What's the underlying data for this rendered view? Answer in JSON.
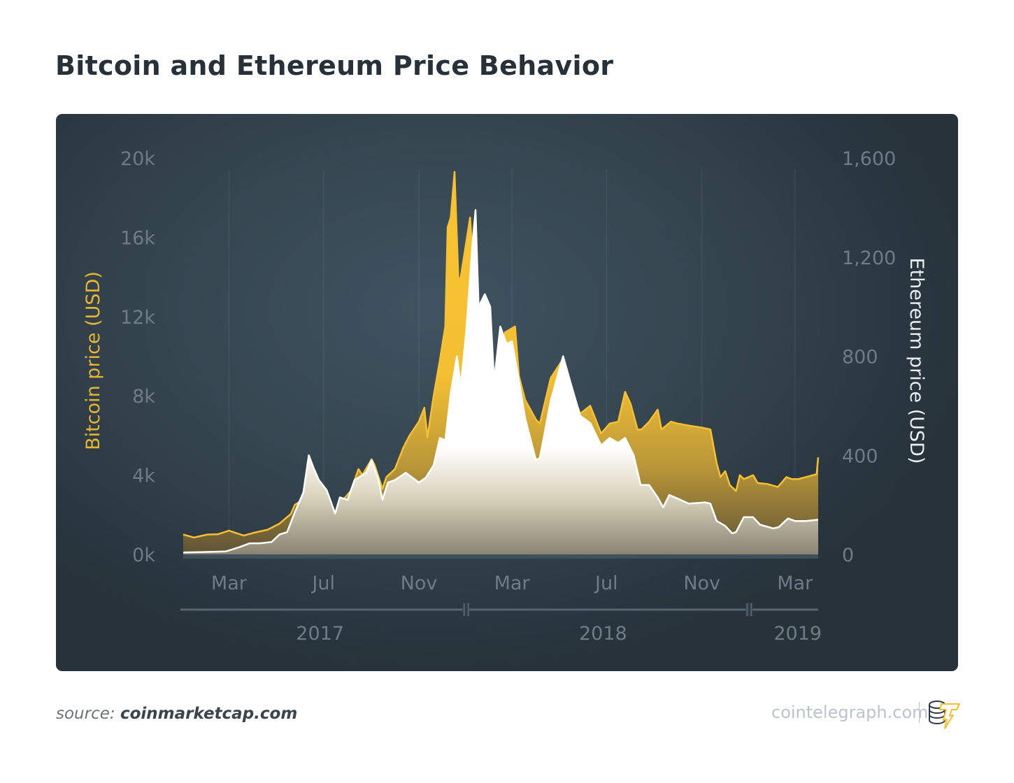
{
  "title": "Bitcoin and Ethereum Price Behavior",
  "footer": {
    "source_prefix": "source:",
    "source_name": "coinmarketcap.com",
    "brand": "cointelegraph.com"
  },
  "colors": {
    "bitcoin": "#f7c030",
    "ethereum": "#ffffff",
    "background": "#34444f",
    "tick": "#6e7c86"
  },
  "chart_data": {
    "type": "area",
    "title": "Bitcoin and Ethereum Price Behavior",
    "xlim": [
      "2017-01-01",
      "2019-03-31"
    ],
    "x_ticks": [
      {
        "date": "2017-03-01",
        "label": "Mar"
      },
      {
        "date": "2017-07-01",
        "label": "Jul"
      },
      {
        "date": "2017-11-01",
        "label": "Nov"
      },
      {
        "date": "2018-03-01",
        "label": "Mar"
      },
      {
        "date": "2018-07-01",
        "label": "Jul"
      },
      {
        "date": "2018-11-01",
        "label": "Nov"
      },
      {
        "date": "2019-03-01",
        "label": "Mar"
      }
    ],
    "year_labels": [
      {
        "date": "2017-07-01",
        "label": "2017"
      },
      {
        "date": "2018-07-01",
        "label": "2018"
      },
      {
        "date": "2019-03-01",
        "label": "2019"
      }
    ],
    "year_breaks": [
      "2018-01-01",
      "2019-01-01"
    ],
    "y_left": {
      "label": "Bitcoin price (USD)",
      "range": [
        0,
        20000
      ],
      "ticks": [
        {
          "v": 0,
          "label": "0k"
        },
        {
          "v": 4000,
          "label": "4k"
        },
        {
          "v": 8000,
          "label": "8k"
        },
        {
          "v": 12000,
          "label": "12k"
        },
        {
          "v": 16000,
          "label": "16k"
        },
        {
          "v": 20000,
          "label": "20k"
        }
      ]
    },
    "y_right": {
      "label": "Ethereum price (USD)",
      "range": [
        0,
        1600
      ],
      "ticks": [
        {
          "v": 0,
          "label": "0"
        },
        {
          "v": 400,
          "label": "400"
        },
        {
          "v": 800,
          "label": "800"
        },
        {
          "v": 1200,
          "label": "1,200"
        },
        {
          "v": 1600,
          "label": "1,600"
        }
      ]
    },
    "grid": "vertical-only",
    "legend": "none (axis titles colored by series)",
    "series": [
      {
        "name": "Bitcoin price (USD)",
        "axis": "left",
        "color": "#f7c030",
        "points": [
          [
            "2017-01-01",
            1000
          ],
          [
            "2017-01-15",
            850
          ],
          [
            "2017-02-01",
            1000
          ],
          [
            "2017-02-15",
            1020
          ],
          [
            "2017-03-01",
            1200
          ],
          [
            "2017-03-20",
            950
          ],
          [
            "2017-04-01",
            1080
          ],
          [
            "2017-04-20",
            1250
          ],
          [
            "2017-05-05",
            1550
          ],
          [
            "2017-05-20",
            2050
          ],
          [
            "2017-05-25",
            2500
          ],
          [
            "2017-06-10",
            2900
          ],
          [
            "2017-06-25",
            2500
          ],
          [
            "2017-07-10",
            2450
          ],
          [
            "2017-07-16",
            1950
          ],
          [
            "2017-07-25",
            2700
          ],
          [
            "2017-08-05",
            3200
          ],
          [
            "2017-08-15",
            4300
          ],
          [
            "2017-08-20",
            4000
          ],
          [
            "2017-09-01",
            4800
          ],
          [
            "2017-09-05",
            4500
          ],
          [
            "2017-09-15",
            3300
          ],
          [
            "2017-09-20",
            3900
          ],
          [
            "2017-10-01",
            4300
          ],
          [
            "2017-10-12",
            5400
          ],
          [
            "2017-10-20",
            6000
          ],
          [
            "2017-11-01",
            6700
          ],
          [
            "2017-11-08",
            7400
          ],
          [
            "2017-11-12",
            5900
          ],
          [
            "2017-11-20",
            8000
          ],
          [
            "2017-11-28",
            9800
          ],
          [
            "2017-12-05",
            11500
          ],
          [
            "2017-12-08",
            16500
          ],
          [
            "2017-12-12",
            17000
          ],
          [
            "2017-12-17",
            19300
          ],
          [
            "2017-12-22",
            13800
          ],
          [
            "2017-12-25",
            14000
          ],
          [
            "2018-01-06",
            17000
          ],
          [
            "2018-01-12",
            13500
          ],
          [
            "2018-01-17",
            11000
          ],
          [
            "2018-01-28",
            11500
          ],
          [
            "2018-02-01",
            9200
          ],
          [
            "2018-02-06",
            6900
          ],
          [
            "2018-02-14",
            9500
          ],
          [
            "2018-02-20",
            11200
          ],
          [
            "2018-03-05",
            11500
          ],
          [
            "2018-03-10",
            9000
          ],
          [
            "2018-03-18",
            7800
          ],
          [
            "2018-04-01",
            6800
          ],
          [
            "2018-04-06",
            6600
          ],
          [
            "2018-04-20",
            8900
          ],
          [
            "2018-05-05",
            9800
          ],
          [
            "2018-05-15",
            8500
          ],
          [
            "2018-05-28",
            7100
          ],
          [
            "2018-06-10",
            7500
          ],
          [
            "2018-06-24",
            6100
          ],
          [
            "2018-07-05",
            6600
          ],
          [
            "2018-07-16",
            6700
          ],
          [
            "2018-07-25",
            8200
          ],
          [
            "2018-08-01",
            7600
          ],
          [
            "2018-08-10",
            6300
          ],
          [
            "2018-08-15",
            6300
          ],
          [
            "2018-08-25",
            6700
          ],
          [
            "2018-09-05",
            7300
          ],
          [
            "2018-09-10",
            6300
          ],
          [
            "2018-09-22",
            6700
          ],
          [
            "2018-10-01",
            6600
          ],
          [
            "2018-10-15",
            6500
          ],
          [
            "2018-11-01",
            6400
          ],
          [
            "2018-11-12",
            6300
          ],
          [
            "2018-11-20",
            4600
          ],
          [
            "2018-11-25",
            3900
          ],
          [
            "2018-12-01",
            4200
          ],
          [
            "2018-12-07",
            3500
          ],
          [
            "2018-12-15",
            3200
          ],
          [
            "2018-12-20",
            4000
          ],
          [
            "2018-12-25",
            3800
          ],
          [
            "2019-01-06",
            4000
          ],
          [
            "2019-01-12",
            3600
          ],
          [
            "2019-01-25",
            3550
          ],
          [
            "2019-02-07",
            3400
          ],
          [
            "2019-02-18",
            3900
          ],
          [
            "2019-02-25",
            3800
          ],
          [
            "2019-03-05",
            3800
          ],
          [
            "2019-03-15",
            3900
          ],
          [
            "2019-03-29",
            4050
          ],
          [
            "2019-03-31",
            4900
          ]
        ]
      },
      {
        "name": "Ethereum price (USD)",
        "axis": "right",
        "color": "#ffffff",
        "points": [
          [
            "2017-01-01",
            8
          ],
          [
            "2017-02-01",
            10
          ],
          [
            "2017-02-25",
            12
          ],
          [
            "2017-03-05",
            20
          ],
          [
            "2017-03-15",
            30
          ],
          [
            "2017-03-28",
            45
          ],
          [
            "2017-04-10",
            45
          ],
          [
            "2017-04-25",
            50
          ],
          [
            "2017-05-05",
            80
          ],
          [
            "2017-05-15",
            90
          ],
          [
            "2017-05-25",
            170
          ],
          [
            "2017-06-05",
            250
          ],
          [
            "2017-06-12",
            400
          ],
          [
            "2017-06-18",
            350
          ],
          [
            "2017-06-25",
            300
          ],
          [
            "2017-07-05",
            260
          ],
          [
            "2017-07-16",
            165
          ],
          [
            "2017-07-22",
            230
          ],
          [
            "2017-08-01",
            220
          ],
          [
            "2017-08-10",
            300
          ],
          [
            "2017-08-25",
            330
          ],
          [
            "2017-09-01",
            380
          ],
          [
            "2017-09-10",
            300
          ],
          [
            "2017-09-15",
            220
          ],
          [
            "2017-09-22",
            290
          ],
          [
            "2017-10-01",
            300
          ],
          [
            "2017-10-15",
            330
          ],
          [
            "2017-11-01",
            290
          ],
          [
            "2017-11-10",
            310
          ],
          [
            "2017-11-20",
            360
          ],
          [
            "2017-11-28",
            470
          ],
          [
            "2017-12-05",
            460
          ],
          [
            "2017-12-12",
            650
          ],
          [
            "2017-12-20",
            800
          ],
          [
            "2017-12-25",
            680
          ],
          [
            "2018-01-01",
            900
          ],
          [
            "2018-01-09",
            1250
          ],
          [
            "2018-01-13",
            1390
          ],
          [
            "2018-01-17",
            1000
          ],
          [
            "2018-01-25",
            1050
          ],
          [
            "2018-02-01",
            1000
          ],
          [
            "2018-02-06",
            700
          ],
          [
            "2018-02-14",
            920
          ],
          [
            "2018-02-22",
            850
          ],
          [
            "2018-03-01",
            860
          ],
          [
            "2018-03-10",
            700
          ],
          [
            "2018-03-18",
            550
          ],
          [
            "2018-04-01",
            380
          ],
          [
            "2018-04-06",
            390
          ],
          [
            "2018-04-20",
            620
          ],
          [
            "2018-05-06",
            800
          ],
          [
            "2018-05-15",
            700
          ],
          [
            "2018-05-28",
            560
          ],
          [
            "2018-06-10",
            530
          ],
          [
            "2018-06-24",
            440
          ],
          [
            "2018-07-05",
            470
          ],
          [
            "2018-07-16",
            450
          ],
          [
            "2018-07-25",
            470
          ],
          [
            "2018-08-05",
            400
          ],
          [
            "2018-08-14",
            280
          ],
          [
            "2018-08-25",
            280
          ],
          [
            "2018-09-05",
            230
          ],
          [
            "2018-09-12",
            190
          ],
          [
            "2018-09-20",
            240
          ],
          [
            "2018-10-01",
            225
          ],
          [
            "2018-10-15",
            205
          ],
          [
            "2018-11-05",
            210
          ],
          [
            "2018-11-12",
            205
          ],
          [
            "2018-11-20",
            135
          ],
          [
            "2018-12-01",
            115
          ],
          [
            "2018-12-10",
            85
          ],
          [
            "2018-12-15",
            90
          ],
          [
            "2018-12-25",
            150
          ],
          [
            "2019-01-06",
            150
          ],
          [
            "2019-01-15",
            120
          ],
          [
            "2019-02-01",
            105
          ],
          [
            "2019-02-08",
            110
          ],
          [
            "2019-02-20",
            145
          ],
          [
            "2019-03-01",
            135
          ],
          [
            "2019-03-15",
            135
          ],
          [
            "2019-03-31",
            140
          ]
        ]
      }
    ]
  }
}
